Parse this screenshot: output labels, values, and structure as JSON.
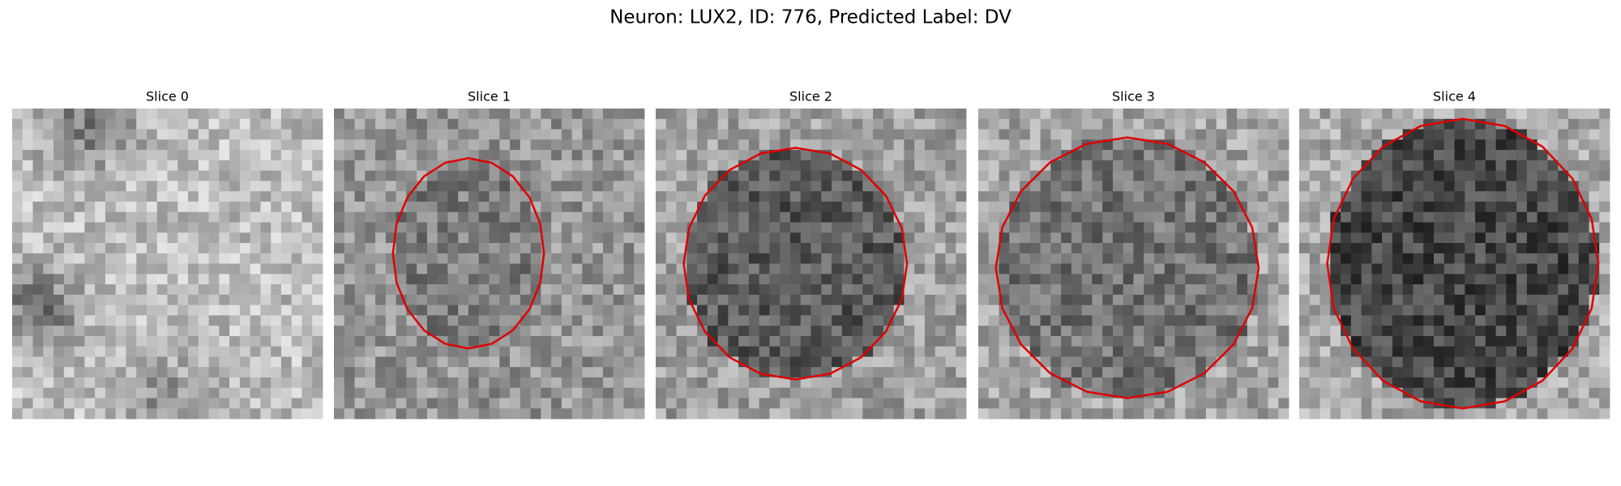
{
  "title": "Neuron: LUX2, ID: 776, Predicted Label: DV",
  "panels": [
    {
      "title": "Slice 0"
    },
    {
      "title": "Slice 1"
    },
    {
      "title": "Slice 2"
    },
    {
      "title": "Slice 3"
    },
    {
      "title": "Slice 4"
    }
  ]
}
